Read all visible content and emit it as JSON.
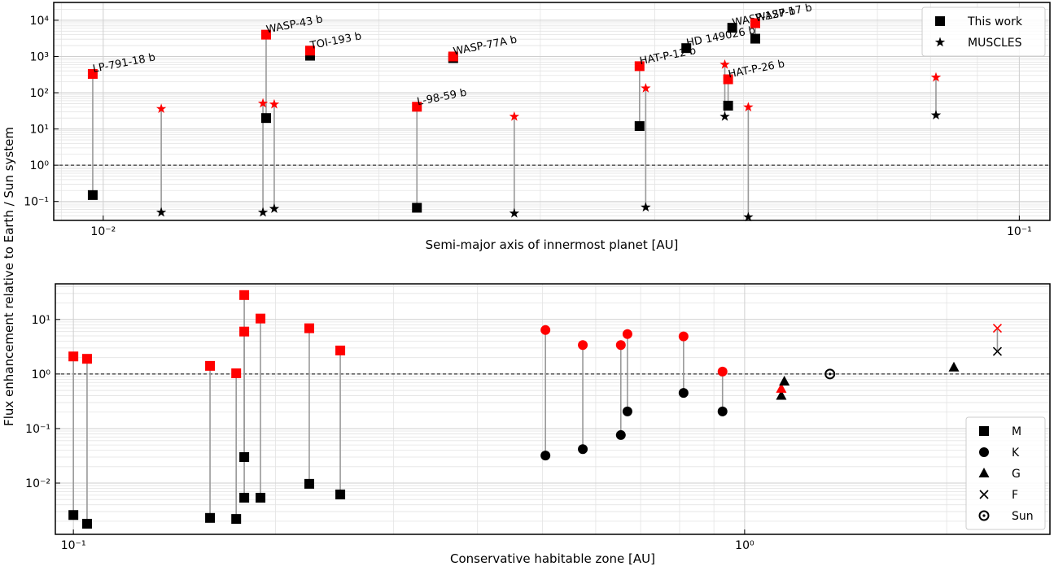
{
  "figure": {
    "ylabel": "Flux enhancement relative to Earth / Sun system"
  },
  "chart_data": [
    {
      "type": "scatter",
      "xlabel": "Semi-major axis of innermost planet [AU]",
      "xscale": "log",
      "yscale": "log",
      "grid": true,
      "legend": "upper right",
      "hline": 1,
      "xlim": [
        0.00883,
        0.108
      ],
      "ylim": [
        0.03,
        31000
      ],
      "xticks": [
        {
          "value": 0.01,
          "label": "10⁻²"
        },
        {
          "value": 0.1,
          "label": "10⁻¹"
        }
      ],
      "yticks": [
        {
          "value": 0.1,
          "label": "10⁻¹"
        },
        {
          "value": 1,
          "label": "10⁰"
        },
        {
          "value": 10,
          "label": "10¹"
        },
        {
          "value": 100,
          "label": "10²"
        },
        {
          "value": 1000,
          "label": "10³"
        },
        {
          "value": 10000,
          "label": "10⁴"
        }
      ],
      "series": [
        {
          "name": "This work",
          "marker": "square",
          "color": "#000000",
          "peak_color": "#ff0000",
          "x": [
            0.00974,
            0.01506,
            0.01682,
            0.022,
            0.0241,
            0.0385,
            0.0433,
            0.0481,
            0.0486,
            0.0515
          ],
          "values": [
            0.15,
            20,
            1050,
            0.067,
            900,
            12,
            1700,
            44,
            6200,
            3100
          ],
          "peak_values": [
            330,
            4000,
            1450,
            41,
            1000,
            540,
            null,
            235,
            null,
            8300
          ],
          "labels": [
            "LP-791-18 b",
            "WASP-43 b",
            "TOI-193 b",
            "L-98-59 b",
            "WASP-77A b",
            "HAT-P-12 b",
            "HD 149026 b",
            "HAT-P-26 b",
            "WASP-127 b",
            "WASP-17 b"
          ]
        },
        {
          "name": "MUSCLES",
          "marker": "star",
          "color": "#000000",
          "peak_color": "#ff0000",
          "x": [
            0.01157,
            0.01494,
            0.01537,
            0.0281,
            0.0391,
            0.0477,
            0.0506,
            0.0811
          ],
          "values": [
            0.05,
            0.05,
            0.063,
            0.047,
            0.069,
            22,
            0.037,
            24
          ],
          "peak_values": [
            36,
            51,
            48,
            22,
            133,
            600,
            40,
            265
          ]
        }
      ]
    },
    {
      "type": "scatter",
      "xlabel": "Conservative habitable zone [AU]",
      "xscale": "log",
      "yscale": "log",
      "grid": true,
      "legend": "lower right",
      "hline": 1,
      "xlim": [
        0.094,
        2.85
      ],
      "ylim": [
        0.00115,
        45
      ],
      "xticks": [
        {
          "value": 0.1,
          "label": "10⁻¹"
        },
        {
          "value": 1,
          "label": "10⁰"
        }
      ],
      "yticks": [
        {
          "value": 0.01,
          "label": "10⁻²"
        },
        {
          "value": 0.1,
          "label": "10⁻¹"
        },
        {
          "value": 1,
          "label": "10⁰"
        },
        {
          "value": 10,
          "label": "10¹"
        }
      ],
      "series": [
        {
          "name": "M",
          "marker": "square",
          "color": "#000000",
          "peak_color": "#ff0000",
          "x": [
            0.1,
            0.1048,
            0.1598,
            0.1748,
            0.1797,
            0.1797,
            0.19,
            0.2246,
            0.2498
          ],
          "values": [
            0.0026,
            0.0018,
            0.0023,
            0.0022,
            0.03,
            0.0054,
            0.0054,
            0.0097,
            0.0062
          ],
          "peak_values": [
            2.1,
            1.9,
            1.41,
            1.03,
            28,
            6.0,
            10.4,
            6.9,
            2.7
          ]
        },
        {
          "name": "K",
          "marker": "circle",
          "color": "#000000",
          "peak_color": "#ff0000",
          "x": [
            0.505,
            0.574,
            0.654,
            0.669,
            0.811,
            0.927
          ],
          "values": [
            0.032,
            0.042,
            0.076,
            0.206,
            0.45,
            0.206
          ],
          "peak_values": [
            6.4,
            3.4,
            3.4,
            5.4,
            4.9,
            1.11
          ]
        },
        {
          "name": "G",
          "marker": "triangle",
          "color": "#000000",
          "peak_color": "#ff0000",
          "x": [
            1.134,
            1.146,
            2.05
          ],
          "values": [
            0.4,
            0.73,
            1.32
          ],
          "peak_values": [
            0.54,
            null,
            null
          ]
        },
        {
          "name": "F",
          "marker": "cross",
          "color": "#000000",
          "peak_color": "#ff0000",
          "x": [
            2.38
          ],
          "values": [
            2.6
          ],
          "peak_values": [
            6.9
          ]
        },
        {
          "name": "Sun",
          "marker": "sun",
          "color": "#000000",
          "x": [
            1.34
          ],
          "values": [
            1.0
          ]
        }
      ]
    }
  ]
}
